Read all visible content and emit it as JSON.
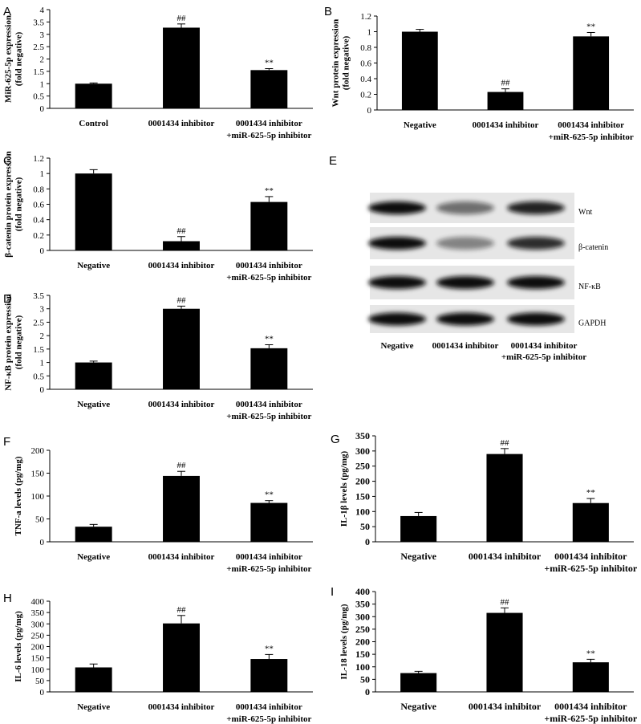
{
  "chart_data": [
    {
      "type": "bar",
      "panel": "A",
      "ylabel": [
        "MiR-625-5p expression",
        "(fold negative)"
      ],
      "categories": [
        [
          "Control"
        ],
        [
          "0001434 inhibitor"
        ],
        [
          "0001434 inhibitor",
          "+miR-625-5p inhibitor"
        ]
      ],
      "values": [
        1.0,
        3.27,
        1.55
      ],
      "errors": [
        0.03,
        0.15,
        0.06
      ],
      "markers": [
        null,
        "##",
        "**"
      ],
      "color": "#000000",
      "ylim": [
        0,
        4
      ],
      "yticks": [
        0,
        0.5,
        1,
        1.5,
        2,
        2.5,
        3,
        3.5,
        4
      ]
    },
    {
      "type": "bar",
      "panel": "B",
      "ylabel": [
        "Wnt protein expression",
        "(fold negative)"
      ],
      "categories": [
        [
          "Negative"
        ],
        [
          "0001434 inhibitor"
        ],
        [
          "0001434 inhibitor",
          "+miR-625-5p inhibitor"
        ]
      ],
      "values": [
        1.0,
        0.23,
        0.94
      ],
      "errors": [
        0.03,
        0.04,
        0.05
      ],
      "markers": [
        null,
        "##",
        "**"
      ],
      "color": "#000000",
      "ylim": [
        0,
        1.2
      ],
      "yticks": [
        0,
        0.2,
        0.4,
        0.6,
        0.8,
        1,
        1.2
      ]
    },
    {
      "type": "bar",
      "panel": "C",
      "ylabel": [
        "β-catenin protein expression",
        "(fold negative)"
      ],
      "categories": [
        [
          "Negative"
        ],
        [
          "0001434 inhibitor"
        ],
        [
          "0001434 inhibitor",
          "+miR-625-5p inhibitor"
        ]
      ],
      "values": [
        1.0,
        0.12,
        0.63
      ],
      "errors": [
        0.05,
        0.06,
        0.07
      ],
      "markers": [
        null,
        "##",
        "**"
      ],
      "color": "#000000",
      "ylim": [
        0,
        1.2
      ],
      "yticks": [
        0,
        0.2,
        0.4,
        0.6,
        0.8,
        1,
        1.2
      ]
    },
    {
      "type": "bar",
      "panel": "D",
      "ylabel": [
        "NF-κB protein expression",
        "(fold negative)"
      ],
      "categories": [
        [
          "Negative"
        ],
        [
          "0001434 inhibitor"
        ],
        [
          "0001434 inhibitor",
          "+miR-625-5p inhibitor"
        ]
      ],
      "values": [
        1.0,
        3.0,
        1.53
      ],
      "errors": [
        0.05,
        0.1,
        0.13
      ],
      "markers": [
        null,
        "##",
        "**"
      ],
      "color": "#000000",
      "ylim": [
        0,
        3.5
      ],
      "yticks": [
        0,
        0.5,
        1,
        1.5,
        2,
        2.5,
        3,
        3.5
      ]
    },
    {
      "type": "bar",
      "panel": "F",
      "ylabel": [
        "TNF-a levels (pg/mg)"
      ],
      "categories": [
        [
          "Negative"
        ],
        [
          "0001434 inhibitor"
        ],
        [
          "0001434 inhibitor",
          "+miR-625-5p inhibitor"
        ]
      ],
      "values": [
        33,
        144,
        85
      ],
      "errors": [
        5,
        10,
        5
      ],
      "markers": [
        null,
        "##",
        "**"
      ],
      "color": "#000000",
      "ylim": [
        0,
        200
      ],
      "yticks": [
        0,
        50,
        100,
        150,
        200
      ]
    },
    {
      "type": "bar",
      "panel": "G",
      "ylabel": [
        "IL-1β levels (pg/mg)"
      ],
      "categories": [
        [
          "Negative"
        ],
        [
          "0001434 inhibitor"
        ],
        [
          "0001434 inhibitor",
          "+miR-625-5p inhibitor"
        ]
      ],
      "values": [
        85,
        290,
        128
      ],
      "errors": [
        12,
        18,
        15
      ],
      "markers": [
        null,
        "##",
        "**"
      ],
      "color": "#000000",
      "ylim": [
        0,
        350
      ],
      "yticks": [
        0,
        50,
        100,
        150,
        200,
        250,
        300,
        350
      ]
    },
    {
      "type": "bar",
      "panel": "H",
      "ylabel": [
        "IL-6 levels (pg/mg)"
      ],
      "categories": [
        [
          "Negative"
        ],
        [
          "0001434 inhibitor"
        ],
        [
          "0001434 inhibitor",
          "+miR-625-5p inhibitor"
        ]
      ],
      "values": [
        108,
        302,
        145
      ],
      "errors": [
        15,
        35,
        20
      ],
      "markers": [
        null,
        "##",
        "**"
      ],
      "color": "#000000",
      "ylim": [
        0,
        400
      ],
      "yticks": [
        0,
        50,
        100,
        150,
        200,
        250,
        300,
        350,
        400
      ]
    },
    {
      "type": "bar",
      "panel": "I",
      "ylabel": [
        "IL-18 levels (pg/mg)"
      ],
      "categories": [
        [
          "Negative"
        ],
        [
          "0001434 inhibitor"
        ],
        [
          "0001434 inhibitor",
          "+miR-625-5p inhibitor"
        ]
      ],
      "values": [
        75,
        315,
        118
      ],
      "errors": [
        7,
        20,
        12
      ],
      "markers": [
        null,
        "##",
        "**"
      ],
      "color": "#000000",
      "ylim": [
        0,
        400
      ],
      "yticks": [
        0,
        50,
        100,
        150,
        200,
        250,
        300,
        350,
        400
      ]
    }
  ],
  "blot": {
    "panel": "E",
    "rows": [
      "Wnt",
      "β-catenin",
      "NF-κB",
      "GAPDH"
    ],
    "lanes": [
      [
        "Negative"
      ],
      [
        "0001434 inhibitor"
      ],
      [
        "0001434 inhibitor",
        "+miR-625-5p inhibitor"
      ]
    ]
  }
}
